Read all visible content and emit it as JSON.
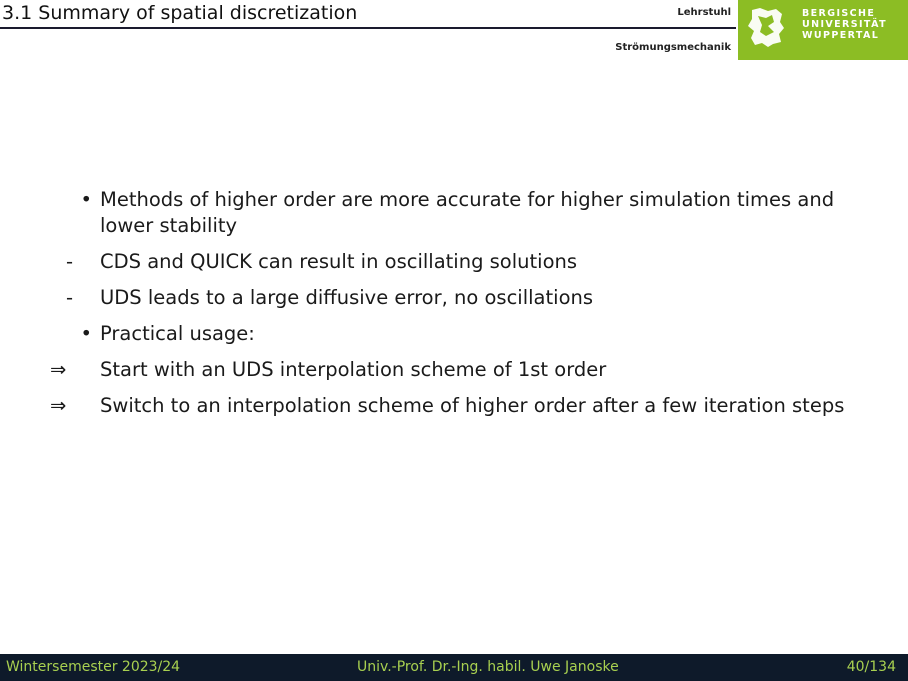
{
  "header": {
    "title": "3.1 Summary of spatial discretization",
    "chair_line1": "Lehrstuhl",
    "chair_line2": "Strömungsmechanik",
    "logo_lines": [
      "BERGISCHE",
      "UNIVERSITÄT",
      "WUPPERTAL"
    ]
  },
  "colors": {
    "accent_green": "#8cbd24",
    "footer_bg": "#0e1a2a",
    "footer_text": "#a8d050"
  },
  "items": [
    {
      "marker": "•",
      "type": "bullet",
      "text": "Methods of higher order are more accurate for higher simulation times and lower stability"
    },
    {
      "marker": "-",
      "type": "dash",
      "text": "CDS and QUICK can result in oscillating solutions"
    },
    {
      "marker": "-",
      "type": "dash",
      "text": "UDS leads to a large diffusive error, no oscillations"
    },
    {
      "marker": "•",
      "type": "bullet",
      "text": "Practical usage:"
    },
    {
      "marker": "⇒",
      "type": "arrow",
      "text": "Start with an UDS interpolation scheme of 1st order"
    },
    {
      "marker": "⇒",
      "type": "arrow",
      "text": "Switch to an interpolation scheme of higher order after a few iteration steps"
    }
  ],
  "footer": {
    "left": "Wintersemester 2023/24",
    "center": "Univ.-Prof. Dr.-Ing. habil. Uwe Janoske",
    "right": "40/134"
  }
}
